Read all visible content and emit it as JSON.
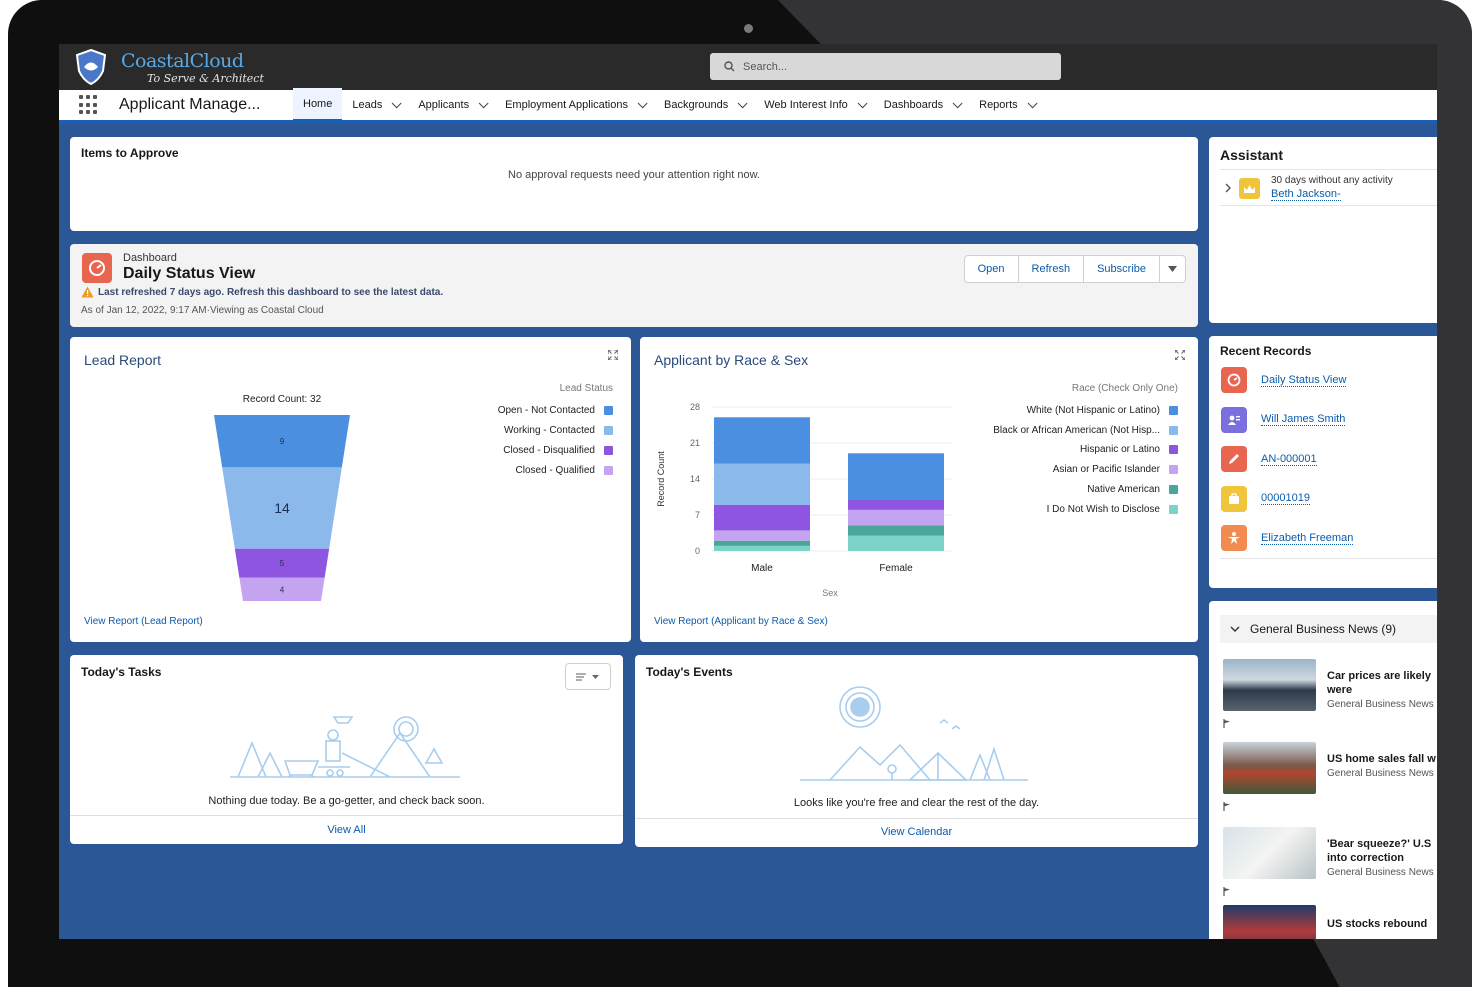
{
  "brand": {
    "logo_text": "CoastalCloud",
    "tagline": "To Serve & Architect"
  },
  "search": {
    "placeholder": "Search..."
  },
  "app_name": "Applicant Manage...",
  "nav": {
    "items": [
      {
        "label": "Home",
        "active": true,
        "dropdown": false
      },
      {
        "label": "Leads",
        "dropdown": true
      },
      {
        "label": "Applicants",
        "dropdown": true
      },
      {
        "label": "Employment Applications",
        "dropdown": true
      },
      {
        "label": "Backgrounds",
        "dropdown": true
      },
      {
        "label": "Web Interest Info",
        "dropdown": true
      },
      {
        "label": "Dashboards",
        "dropdown": true
      },
      {
        "label": "Reports",
        "dropdown": true
      }
    ]
  },
  "approvals": {
    "title": "Items to Approve",
    "message": "No approval requests need your attention right now."
  },
  "dashboard": {
    "type_label": "Dashboard",
    "title": "Daily Status View",
    "warning": "Last refreshed 7 days ago. Refresh this dashboard to see the latest data.",
    "as_of": "As of Jan 12, 2022, 9:17 AM·Viewing as Coastal Cloud",
    "buttons": {
      "open": "Open",
      "refresh": "Refresh",
      "subscribe": "Subscribe"
    }
  },
  "lead_report": {
    "title": "Lead Report",
    "record_count": "Record Count: 32",
    "legend_title": "Lead Status",
    "link": "View Report (Lead Report)"
  },
  "race_report": {
    "title": "Applicant by Race & Sex",
    "legend_title": "Race (Check Only One)",
    "link": "View Report (Applicant by Race & Sex)"
  },
  "chart_data": [
    {
      "type": "funnel",
      "title": "Lead Report",
      "subtitle": "Record Count: 32",
      "legend_title": "Lead Status",
      "series": [
        {
          "name": "Open - Not Contacted",
          "value": 9,
          "color": "#4a8fe0"
        },
        {
          "name": "Working - Contacted",
          "value": 14,
          "color": "#8bb9ec"
        },
        {
          "name": "Closed - Disqualified",
          "value": 5,
          "color": "#8e55e0"
        },
        {
          "name": "Closed - Qualified",
          "value": 4,
          "color": "#c4a4f0"
        }
      ]
    },
    {
      "type": "bar",
      "stacked": true,
      "title": "Applicant by Race & Sex",
      "xlabel": "Sex",
      "ylabel": "Record Count",
      "ylim": [
        0,
        28
      ],
      "yticks": [
        0,
        7,
        14,
        21,
        28
      ],
      "categories": [
        "Male",
        "Female"
      ],
      "legend_title": "Race (Check Only One)",
      "series": [
        {
          "name": "White (Not Hispanic or Latino)",
          "color": "#4a8fe0",
          "values": [
            9,
            9
          ]
        },
        {
          "name": "Black or African American (Not Hisp...",
          "color": "#8bb9ec",
          "values": [
            8,
            0
          ]
        },
        {
          "name": "Hispanic or Latino",
          "color": "#8e55e0",
          "values": [
            5,
            2
          ]
        },
        {
          "name": "Asian or Pacific Islander",
          "color": "#c4a4f0",
          "values": [
            2,
            3
          ]
        },
        {
          "name": "Native American",
          "color": "#4aa59a",
          "values": [
            1,
            2
          ]
        },
        {
          "name": "I Do Not Wish to Disclose",
          "color": "#7dd3c8",
          "values": [
            1,
            3
          ]
        }
      ]
    }
  ],
  "tasks": {
    "title": "Today's Tasks",
    "empty": "Nothing due today. Be a go-getter, and check back soon.",
    "link": "View All"
  },
  "events": {
    "title": "Today's Events",
    "empty": "Looks like you're free and clear the rest of the day.",
    "link": "View Calendar"
  },
  "assistant": {
    "title": "Assistant",
    "item_text": "30 days without any activity",
    "item_link": "Beth Jackson-"
  },
  "recent": {
    "title": "Recent Records",
    "items": [
      {
        "label": "Daily Status View",
        "color": "#e8654f"
      },
      {
        "label": "Will James Smith",
        "color": "#7b6fe0"
      },
      {
        "label": "AN-000001",
        "color": "#e8654f"
      },
      {
        "label": "00001019",
        "color": "#f0c53c"
      },
      {
        "label": "Elizabeth Freeman",
        "color": "#f28b4f"
      }
    ]
  },
  "news": {
    "title": "General Business News (9)",
    "items": [
      {
        "title1": "Car prices are likely",
        "title2": "were",
        "source": "General Business News"
      },
      {
        "title1": "US home sales fall w",
        "title2": "",
        "source": "General Business News"
      },
      {
        "title1": "'Bear squeeze?' U.S",
        "title2": "into correction",
        "source": "General Business News"
      },
      {
        "title1": "US stocks rebound",
        "title2": "",
        "source": ""
      }
    ]
  }
}
